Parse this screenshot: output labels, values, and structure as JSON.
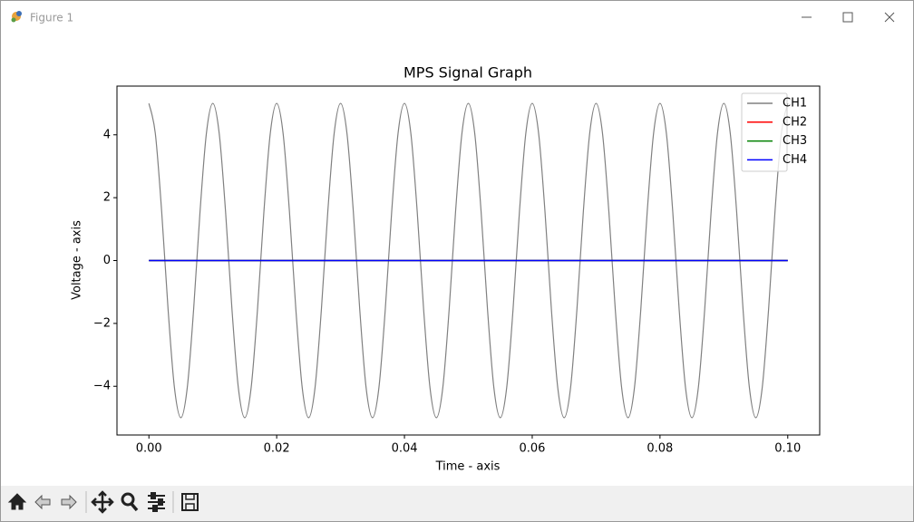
{
  "window": {
    "title": "Figure 1"
  },
  "chart_data": {
    "type": "line",
    "title": "MPS Signal Graph",
    "x_label": "Time - axis",
    "y_label": "Voltage - axis",
    "xlim": [
      -0.005,
      0.105
    ],
    "ylim": [
      -5.55,
      5.55
    ],
    "xticks": [
      {
        "value": 0,
        "label": "0.00"
      },
      0.02,
      0.04,
      0.06,
      0.08,
      {
        "value": 0.1,
        "label": "0.10"
      }
    ],
    "yticks": [
      {
        "value": -4,
        "label": "−4"
      },
      {
        "value": -2,
        "label": "−2"
      },
      0,
      2,
      4
    ],
    "legend": "upper right",
    "series": [
      {
        "name": "CH1",
        "color": "#808080",
        "x": [
          0,
          0.001,
          0.002,
          0.003,
          0.004,
          0.005,
          0.006,
          0.007,
          0.008,
          0.009,
          0.01,
          0.011,
          0.012,
          0.013,
          0.014,
          0.015,
          0.016,
          0.017,
          0.018,
          0.019,
          0.02,
          0.021,
          0.022,
          0.023,
          0.024,
          0.025,
          0.026,
          0.027,
          0.028,
          0.029,
          0.03,
          0.031,
          0.032,
          0.033,
          0.034,
          0.035,
          0.036,
          0.037,
          0.038,
          0.039,
          0.04,
          0.041,
          0.042,
          0.043,
          0.044,
          0.045,
          0.046,
          0.047,
          0.048,
          0.049,
          0.05,
          0.051,
          0.052,
          0.053,
          0.054,
          0.055,
          0.056,
          0.057,
          0.058,
          0.059,
          0.06,
          0.061,
          0.062,
          0.063,
          0.064,
          0.065,
          0.066,
          0.067,
          0.068,
          0.069,
          0.07,
          0.071,
          0.072,
          0.073,
          0.074,
          0.075,
          0.076,
          0.077,
          0.078,
          0.079,
          0.08,
          0.081,
          0.082,
          0.083,
          0.084,
          0.085,
          0.086,
          0.087,
          0.088,
          0.089,
          0.09,
          0.091,
          0.092,
          0.093,
          0.094,
          0.095,
          0.096,
          0.097,
          0.098,
          0.099,
          0.1
        ],
        "values": [
          5,
          4.05,
          1.55,
          -1.55,
          -4.05,
          -5,
          -4.05,
          -1.55,
          1.55,
          4.05,
          5,
          4.05,
          1.55,
          -1.55,
          -4.05,
          -5,
          -4.05,
          -1.55,
          1.55,
          4.05,
          5,
          4.05,
          1.55,
          -1.55,
          -4.05,
          -5,
          -4.05,
          -1.55,
          1.55,
          4.05,
          5,
          4.05,
          1.55,
          -1.55,
          -4.05,
          -5,
          -4.05,
          -1.55,
          1.55,
          4.05,
          5,
          4.05,
          1.55,
          -1.55,
          -4.05,
          -5,
          -4.05,
          -1.55,
          1.55,
          4.05,
          5,
          4.05,
          1.55,
          -1.55,
          -4.05,
          -5,
          -4.05,
          -1.55,
          1.55,
          4.05,
          5,
          4.05,
          1.55,
          -1.55,
          -4.05,
          -5,
          -4.05,
          -1.55,
          1.55,
          4.05,
          5,
          4.05,
          1.55,
          -1.55,
          -4.05,
          -5,
          -4.05,
          -1.55,
          1.55,
          4.05,
          5,
          4.05,
          1.55,
          -1.55,
          -4.05,
          -5,
          -4.05,
          -1.55,
          1.55,
          4.05,
          5,
          4.05,
          1.55,
          -1.55,
          -4.05,
          -5,
          -4.05,
          -1.55,
          1.55,
          4.05,
          5
        ]
      },
      {
        "name": "CH2",
        "color": "#ff0000",
        "x": [
          0,
          0.1
        ],
        "values": [
          0,
          0
        ]
      },
      {
        "name": "CH3",
        "color": "#008000",
        "x": [
          0,
          0.1
        ],
        "values": [
          0,
          0
        ]
      },
      {
        "name": "CH4",
        "color": "#0000ff",
        "x": [
          0,
          0.1
        ],
        "values": [
          0,
          0
        ]
      }
    ]
  }
}
